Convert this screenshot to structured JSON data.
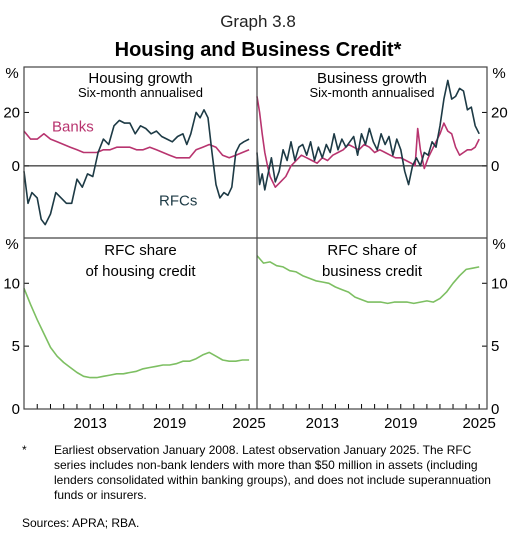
{
  "graph_number": "Graph 3.8",
  "title": "Housing and Business Credit*",
  "footnote_marker": "*",
  "footnote": "Earliest observation January 2008. Latest observation January 2025. The RFC series includes non-bank lenders with more than $50 million in assets (including lenders consolidated within banking groups), and does not include superannuation funds or insurers.",
  "sources": "Sources: APRA; RBA.",
  "colors": {
    "banks": "#b8346f",
    "rfcs": "#1d3a45",
    "share": "#7dbf62",
    "frame": "#555555"
  },
  "chart_data": [
    {
      "type": "line",
      "title": "Housing growth",
      "subtitle": "Six-month annualised",
      "ylabel": "%",
      "ylim": [
        -27,
        37
      ],
      "yticks": [
        0,
        20
      ],
      "xlim": [
        2008.0,
        2025.6
      ],
      "series": [
        {
          "name": "Banks",
          "x": [
            2008.0,
            2008.5,
            2009.0,
            2009.5,
            2010.0,
            2010.5,
            2011.0,
            2011.5,
            2012.0,
            2012.5,
            2013.0,
            2013.5,
            2014.0,
            2014.5,
            2015.0,
            2015.5,
            2016.0,
            2016.5,
            2017.0,
            2017.5,
            2018.0,
            2018.5,
            2019.0,
            2019.5,
            2020.0,
            2020.5,
            2021.0,
            2021.5,
            2022.0,
            2022.5,
            2023.0,
            2023.5,
            2024.0,
            2024.5,
            2025.0
          ],
          "values": [
            13,
            10,
            10,
            12,
            10,
            9,
            8,
            7,
            6,
            5,
            5,
            5,
            6,
            6,
            7,
            7,
            7,
            6,
            6,
            7,
            6,
            5,
            4,
            3,
            3,
            3,
            6,
            7,
            8,
            7,
            4,
            3,
            4,
            5,
            6
          ]
        },
        {
          "name": "RFCs",
          "x": [
            2008.0,
            2008.3,
            2008.6,
            2009.0,
            2009.3,
            2009.6,
            2010.0,
            2010.4,
            2010.8,
            2011.2,
            2011.6,
            2012.0,
            2012.4,
            2012.8,
            2013.2,
            2013.6,
            2014.0,
            2014.4,
            2014.8,
            2015.2,
            2015.6,
            2016.0,
            2016.4,
            2016.8,
            2017.2,
            2017.6,
            2018.0,
            2018.4,
            2018.8,
            2019.2,
            2019.6,
            2020.0,
            2020.3,
            2020.6,
            2021.0,
            2021.3,
            2021.6,
            2021.9,
            2022.2,
            2022.5,
            2022.8,
            2023.1,
            2023.4,
            2023.7,
            2024.0,
            2024.3,
            2024.6,
            2025.0
          ],
          "values": [
            -2,
            -14,
            -10,
            -12,
            -20,
            -22,
            -18,
            -10,
            -12,
            -14,
            -14,
            -5,
            -8,
            -3,
            -4,
            5,
            10,
            8,
            15,
            17,
            16,
            16,
            12,
            15,
            14,
            12,
            13,
            11,
            10,
            9,
            11,
            12,
            8,
            12,
            20,
            18,
            21,
            18,
            5,
            -7,
            -12,
            -10,
            -11,
            -8,
            5,
            8,
            9,
            10
          ]
        }
      ],
      "annotations": [
        "Banks",
        "RFCs"
      ]
    },
    {
      "type": "line",
      "title": "Business growth",
      "subtitle": "Six-month annualised",
      "ylabel": "%",
      "ylim": [
        -27,
        37
      ],
      "yticks": [
        0,
        20
      ],
      "xlim": [
        2008.0,
        2025.6
      ],
      "series": [
        {
          "name": "Banks",
          "x": [
            2008.0,
            2008.2,
            2008.4,
            2008.6,
            2008.8,
            2009.0,
            2009.4,
            2009.8,
            2010.2,
            2010.6,
            2011.0,
            2011.4,
            2011.8,
            2012.2,
            2012.6,
            2013.0,
            2013.4,
            2013.8,
            2014.2,
            2014.6,
            2015.0,
            2015.4,
            2015.8,
            2016.2,
            2016.6,
            2017.0,
            2017.4,
            2017.8,
            2018.2,
            2018.6,
            2019.0,
            2019.4,
            2019.8,
            2020.1,
            2020.3,
            2020.5,
            2020.8,
            2021.1,
            2021.4,
            2021.7,
            2022.0,
            2022.3,
            2022.6,
            2022.9,
            2023.2,
            2023.5,
            2023.8,
            2024.1,
            2024.4,
            2024.7,
            2025.0
          ],
          "values": [
            26,
            20,
            12,
            5,
            0,
            -4,
            -8,
            -6,
            -4,
            0,
            2,
            4,
            3,
            2,
            1,
            3,
            2,
            4,
            5,
            6,
            8,
            7,
            6,
            8,
            7,
            5,
            6,
            5,
            4,
            3,
            3,
            2,
            1,
            0,
            14,
            6,
            -1,
            3,
            6,
            9,
            12,
            16,
            13,
            12,
            7,
            4,
            5,
            6,
            6,
            7,
            10
          ]
        },
        {
          "name": "RFCs",
          "x": [
            2008.0,
            2008.2,
            2008.4,
            2008.6,
            2008.8,
            2009.1,
            2009.4,
            2009.7,
            2010.0,
            2010.3,
            2010.6,
            2010.9,
            2011.2,
            2011.5,
            2011.8,
            2012.1,
            2012.4,
            2012.7,
            2013.0,
            2013.3,
            2013.6,
            2013.9,
            2014.2,
            2014.5,
            2014.8,
            2015.1,
            2015.4,
            2015.7,
            2016.0,
            2016.3,
            2016.6,
            2016.9,
            2017.2,
            2017.5,
            2017.8,
            2018.1,
            2018.4,
            2018.7,
            2019.0,
            2019.3,
            2019.6,
            2019.9,
            2020.2,
            2020.5,
            2020.8,
            2021.1,
            2021.4,
            2021.7,
            2022.0,
            2022.3,
            2022.6,
            2022.9,
            2023.2,
            2023.5,
            2023.8,
            2024.1,
            2024.4,
            2024.7,
            2025.0
          ],
          "values": [
            5,
            -7,
            -3,
            -9,
            -4,
            3,
            -6,
            -2,
            6,
            2,
            9,
            2,
            7,
            8,
            4,
            9,
            2,
            7,
            3,
            8,
            5,
            12,
            6,
            10,
            7,
            9,
            11,
            4,
            12,
            8,
            14,
            9,
            6,
            12,
            8,
            11,
            4,
            10,
            6,
            -2,
            -7,
            0,
            3,
            0,
            5,
            4,
            9,
            7,
            15,
            25,
            32,
            25,
            26,
            29,
            28,
            21,
            22,
            15,
            12
          ]
        }
      ]
    },
    {
      "type": "line",
      "title": "RFC share",
      "subtitle": "of housing credit",
      "ylabel": "%",
      "ylim": [
        0,
        13.6
      ],
      "yticks": [
        0,
        5,
        10
      ],
      "xlim": [
        2008.0,
        2025.6
      ],
      "xticks": [
        2013,
        2019,
        2025
      ],
      "series": [
        {
          "name": "RFC share of housing credit",
          "x": [
            2008.0,
            2008.5,
            2009.0,
            2009.5,
            2010.0,
            2010.5,
            2011.0,
            2011.5,
            2012.0,
            2012.5,
            2013.0,
            2013.5,
            2014.0,
            2014.5,
            2015.0,
            2015.5,
            2016.0,
            2016.5,
            2017.0,
            2017.5,
            2018.0,
            2018.5,
            2019.0,
            2019.5,
            2020.0,
            2020.5,
            2021.0,
            2021.5,
            2022.0,
            2022.5,
            2023.0,
            2023.5,
            2024.0,
            2024.5,
            2025.0
          ],
          "values": [
            9.6,
            8.3,
            7.1,
            6.0,
            4.9,
            4.2,
            3.7,
            3.3,
            2.9,
            2.6,
            2.5,
            2.5,
            2.6,
            2.7,
            2.8,
            2.8,
            2.9,
            3.0,
            3.2,
            3.3,
            3.4,
            3.5,
            3.5,
            3.6,
            3.8,
            3.8,
            4.0,
            4.3,
            4.5,
            4.2,
            3.9,
            3.8,
            3.8,
            3.9,
            3.9
          ]
        }
      ]
    },
    {
      "type": "line",
      "title": "RFC share of",
      "subtitle": "business credit",
      "ylabel": "%",
      "ylim": [
        0,
        13.6
      ],
      "yticks": [
        0,
        5,
        10
      ],
      "xlim": [
        2008.0,
        2025.6
      ],
      "xticks": [
        2013,
        2019,
        2025
      ],
      "series": [
        {
          "name": "RFC share of business credit",
          "x": [
            2008.0,
            2008.5,
            2009.0,
            2009.5,
            2010.0,
            2010.5,
            2011.0,
            2011.5,
            2012.0,
            2012.5,
            2013.0,
            2013.5,
            2014.0,
            2014.5,
            2015.0,
            2015.5,
            2016.0,
            2016.5,
            2017.0,
            2017.5,
            2018.0,
            2018.5,
            2019.0,
            2019.5,
            2020.0,
            2020.5,
            2021.0,
            2021.5,
            2022.0,
            2022.5,
            2023.0,
            2023.5,
            2024.0,
            2024.5,
            2025.0
          ],
          "values": [
            12.2,
            11.6,
            11.7,
            11.4,
            11.3,
            11.0,
            10.9,
            10.6,
            10.4,
            10.2,
            10.1,
            10.0,
            9.7,
            9.5,
            9.3,
            8.9,
            8.7,
            8.5,
            8.5,
            8.5,
            8.4,
            8.5,
            8.5,
            8.5,
            8.4,
            8.5,
            8.6,
            8.5,
            8.8,
            9.3,
            10.0,
            10.6,
            11.1,
            11.2,
            11.3
          ]
        }
      ]
    }
  ]
}
